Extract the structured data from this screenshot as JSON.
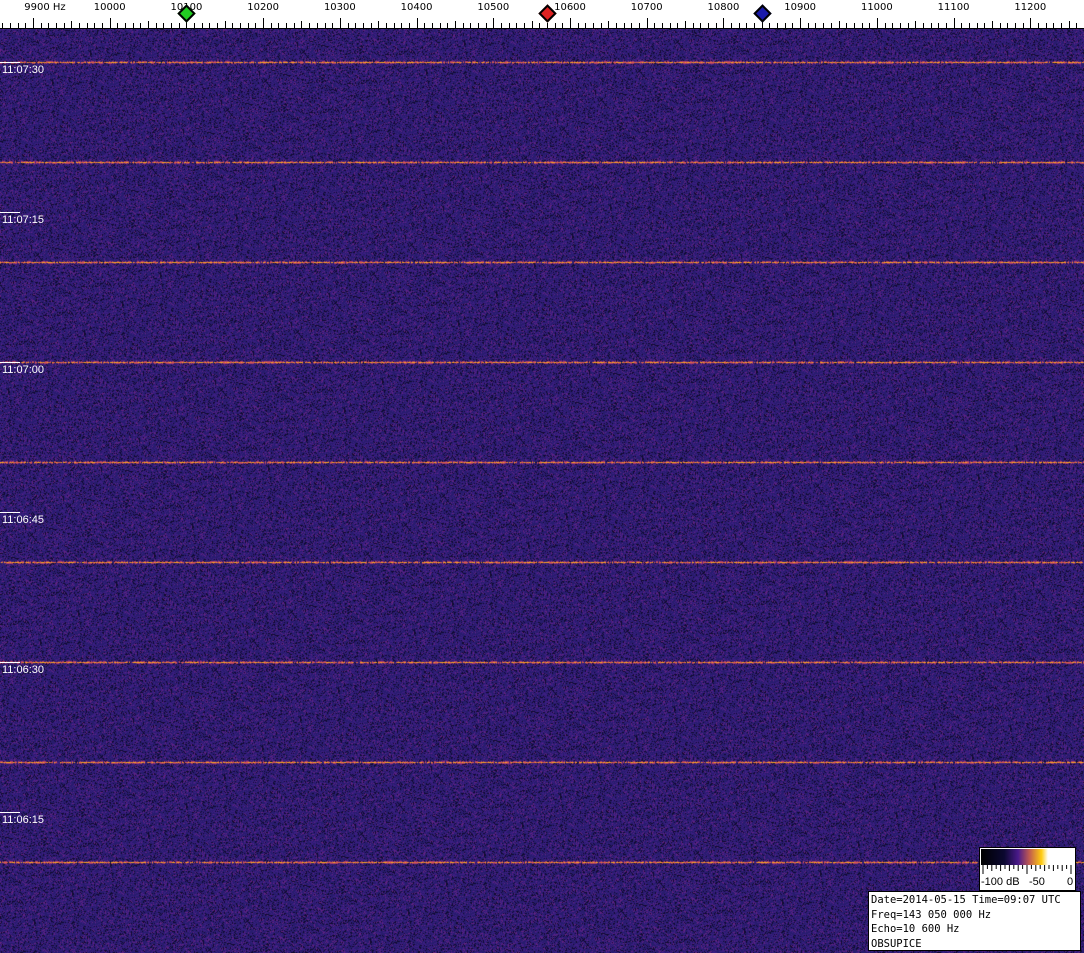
{
  "chart_data": {
    "type": "heatmap",
    "xlabel_unit": "Hz",
    "x_ticks": [
      "9900 Hz",
      "10000",
      "10100",
      "10200",
      "10300",
      "10400",
      "10500",
      "10600",
      "10700",
      "10800",
      "10900",
      "11000",
      "11100",
      "11200"
    ],
    "x_tick_values": [
      9900,
      10000,
      10100,
      10200,
      10300,
      10400,
      10500,
      10600,
      10700,
      10800,
      10900,
      11000,
      11100,
      11200
    ],
    "xlim": [
      9857,
      11270
    ],
    "time_labels": [
      "11:07:30",
      "11:07:15",
      "11:07:00",
      "11:06:45",
      "11:06:30",
      "11:06:15"
    ],
    "signal_interval_s": 10,
    "signal_description_times_count": 9,
    "markers": [
      {
        "freq": 10100,
        "color": "#22cc22"
      },
      {
        "freq": 10570,
        "color": "#dd2222"
      },
      {
        "freq": 10850,
        "color": "#1a1aaa"
      }
    ],
    "colorbar": {
      "labels": [
        "-100 dB",
        "-50",
        "0"
      ],
      "range_db": [
        -100,
        0
      ]
    },
    "colors": {
      "background": "#2b1c6e",
      "signal": "#ffa020"
    }
  },
  "info": {
    "line1": "Date=2014-05-15 Time=09:07 UTC",
    "line2": "Freq=143 050 000 Hz",
    "line3": "Echo=10 600 Hz",
    "line4": "OBSUPICE"
  }
}
